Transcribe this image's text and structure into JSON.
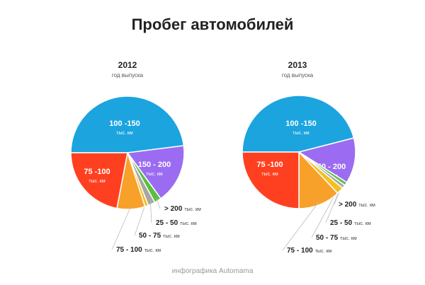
{
  "title": "Пробег автомобилей",
  "credit": "инфографика Automama",
  "unit": "тыс. км",
  "chart_data": [
    {
      "type": "pie",
      "title": "2012",
      "subtitle": "год выпуска",
      "series": [
        {
          "label": "100 -150",
          "value": 48,
          "color": "#1ca4df"
        },
        {
          "label": "150 - 200",
          "value": 17,
          "color": "#9b6cf2"
        },
        {
          "label": "> 200",
          "value": 2,
          "color": "#5bbf3e"
        },
        {
          "label": "25 - 50",
          "value": 2,
          "color": "#a6a6a6"
        },
        {
          "label": "50 - 75",
          "value": 1,
          "color": "#f2c21a"
        },
        {
          "label": "75 - 100",
          "value": 8,
          "color": "#f7a12a"
        },
        {
          "label": "75 -100",
          "value": 22,
          "color": "#ff4020"
        }
      ]
    },
    {
      "type": "pie",
      "title": "2013",
      "subtitle": "год выпуска",
      "series": [
        {
          "label": "100 -150",
          "value": 46,
          "color": "#1ca4df"
        },
        {
          "label": "150 - 200",
          "value": 13,
          "color": "#9b6cf2"
        },
        {
          "label": "> 200",
          "value": 1,
          "color": "#5bbf3e"
        },
        {
          "label": "25 - 50",
          "value": 1,
          "color": "#a6a6a6"
        },
        {
          "label": "50 - 75",
          "value": 2,
          "color": "#f2c21a"
        },
        {
          "label": "75 - 100",
          "value": 12,
          "color": "#f7a12a"
        },
        {
          "label": "75 -100",
          "value": 25,
          "color": "#ff4020"
        }
      ]
    }
  ]
}
